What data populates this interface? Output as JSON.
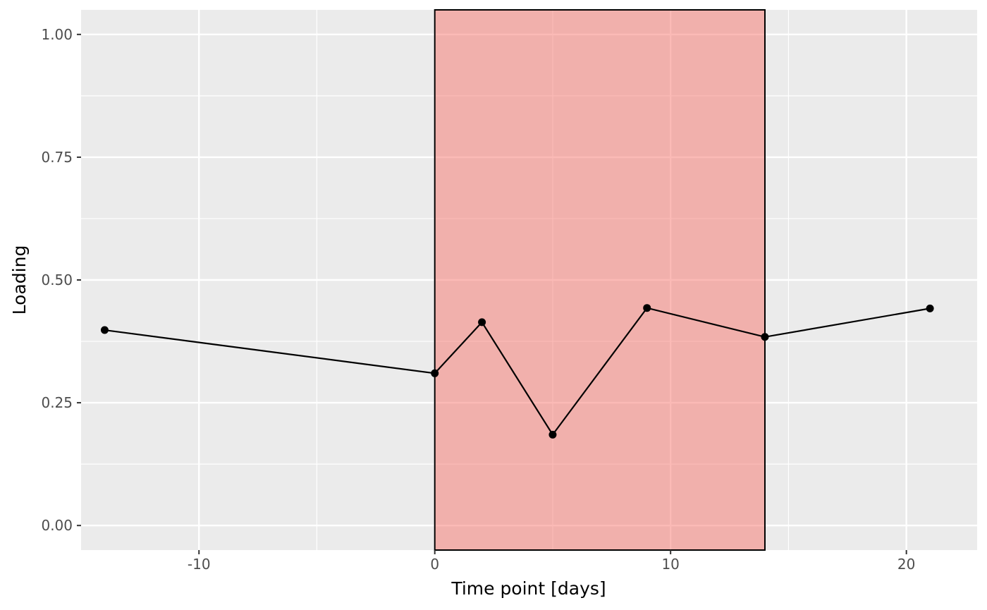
{
  "chart_data": {
    "type": "line",
    "xlabel": "Time point [days]",
    "ylabel": "Loading",
    "xlim": [
      -15,
      23
    ],
    "ylim": [
      -0.05,
      1.05
    ],
    "x_ticks": [
      -10,
      0,
      10,
      20
    ],
    "x_tick_labels": [
      "-10",
      "0",
      "10",
      "20"
    ],
    "y_ticks": [
      0,
      0.25,
      0.5,
      0.75,
      1.0
    ],
    "y_tick_labels": [
      "0.00",
      "0.25",
      "0.50",
      "0.75",
      "1.00"
    ],
    "grid": true,
    "legend": "none",
    "highlight_region": {
      "x_start": 0,
      "x_end": 14,
      "color": "#f8766d"
    },
    "panel_background": "#ebebeb",
    "grid_color": "#ffffff",
    "line_color": "#000000",
    "series": [
      {
        "x": [
          -14,
          0,
          2,
          5,
          9,
          14,
          21
        ],
        "values": [
          0.398,
          0.31,
          0.414,
          0.185,
          0.443,
          0.384,
          0.442
        ]
      }
    ]
  }
}
